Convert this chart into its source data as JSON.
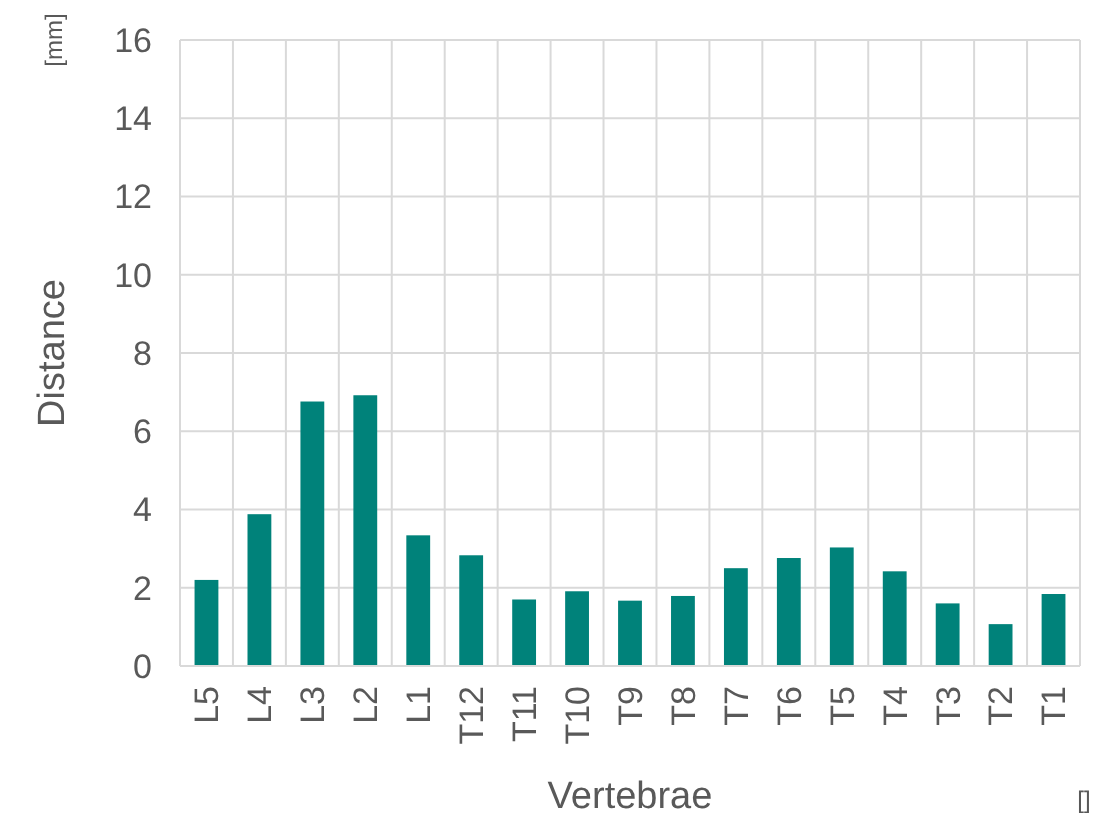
{
  "chart_data": {
    "type": "bar",
    "xlabel": "Vertebrae",
    "ylabel": "Distance",
    "categories": [
      "L5",
      "L4",
      "L3",
      "L2",
      "L1",
      "T12",
      "T11",
      "T10",
      "T9",
      "T8",
      "T7",
      "T6",
      "T5",
      "T4",
      "T3",
      "T2",
      "T1"
    ],
    "values": [
      2.2,
      3.88,
      6.76,
      6.92,
      3.34,
      2.83,
      1.7,
      1.91,
      1.67,
      1.79,
      2.5,
      2.76,
      3.03,
      2.42,
      1.6,
      1.07,
      1.84
    ],
    "color": "#00827a",
    "ylim": [
      0,
      16
    ],
    "yticks": [
      0,
      2,
      4,
      6,
      8,
      10,
      12,
      14,
      16
    ],
    "grid": true,
    "annotations": [
      "[mm]",
      "[]"
    ]
  }
}
